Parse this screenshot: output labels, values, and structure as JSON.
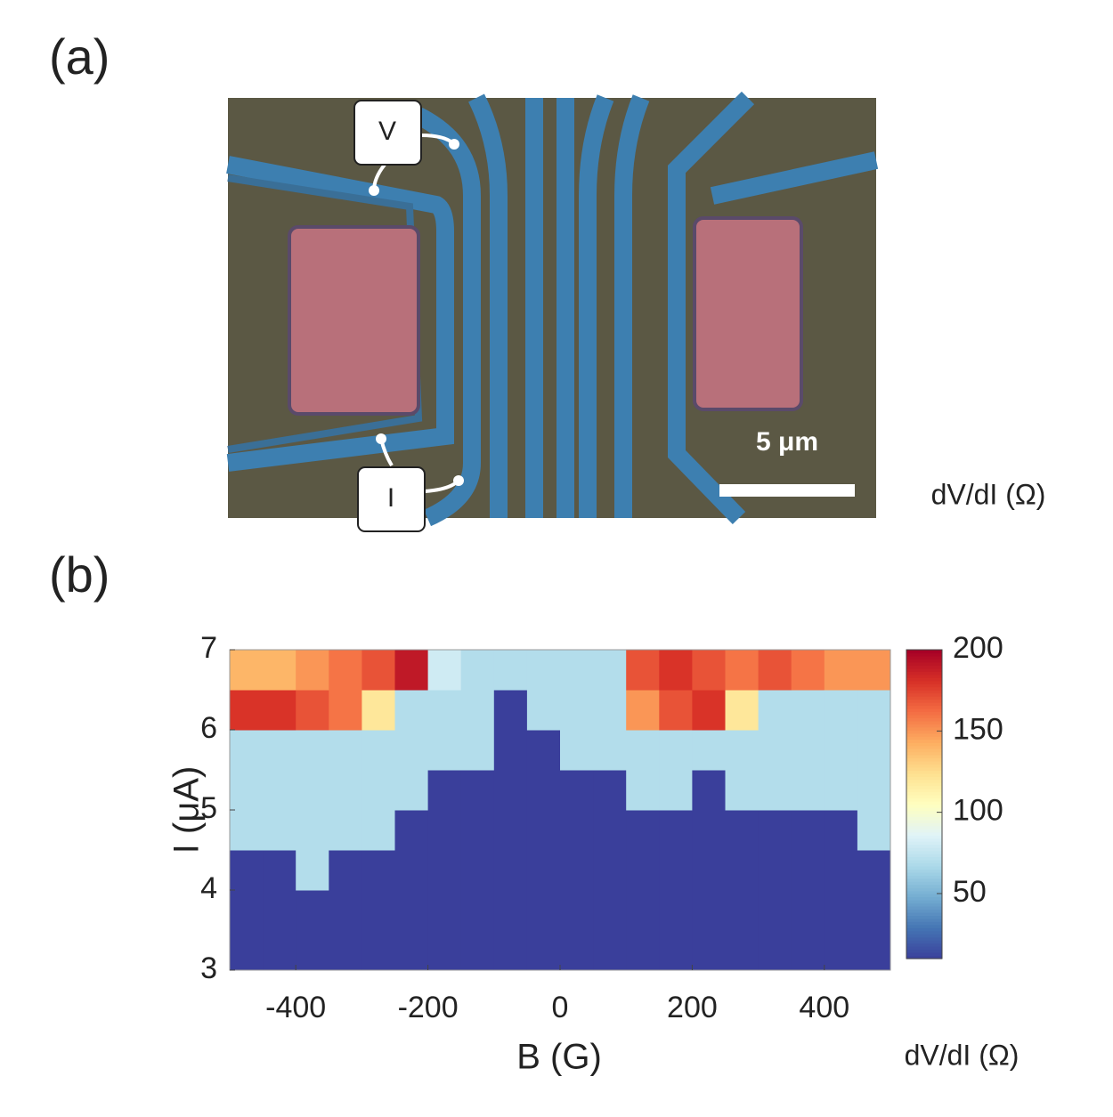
{
  "figure": {
    "panel_a": "(a)",
    "panel_b": "(b)",
    "probe_v": "V",
    "probe_i": "I",
    "scale_bar": "5 μm",
    "side_label": "dV/dI (Ω)"
  },
  "chart_data": {
    "type": "heatmap",
    "xlabel": "B (G)",
    "ylabel": "I (μA)",
    "colorbar_label": "dV/dI (Ω)",
    "x_bins": [
      -500,
      -450,
      -400,
      -350,
      -300,
      -250,
      -200,
      -150,
      -100,
      -50,
      0,
      50,
      100,
      150,
      200,
      250,
      300,
      350,
      400,
      450,
      500
    ],
    "y_bins": [
      3,
      3.5,
      4,
      4.5,
      5,
      5.5,
      6,
      6.5,
      7
    ],
    "z": [
      [
        10,
        10,
        10,
        10,
        10,
        10,
        10,
        10,
        10,
        10,
        10,
        10,
        10,
        10,
        10,
        10,
        10,
        10,
        10,
        10
      ],
      [
        10,
        10,
        10,
        10,
        10,
        10,
        10,
        10,
        10,
        10,
        10,
        10,
        10,
        10,
        10,
        10,
        10,
        10,
        10,
        10
      ],
      [
        10,
        10,
        70,
        10,
        10,
        10,
        10,
        10,
        10,
        10,
        10,
        10,
        10,
        10,
        10,
        10,
        10,
        10,
        10,
        10
      ],
      [
        70,
        70,
        70,
        70,
        70,
        10,
        10,
        10,
        10,
        10,
        10,
        10,
        10,
        10,
        10,
        10,
        10,
        10,
        10,
        70
      ],
      [
        70,
        70,
        70,
        70,
        70,
        70,
        10,
        10,
        10,
        10,
        10,
        10,
        70,
        70,
        10,
        70,
        70,
        70,
        70,
        70
      ],
      [
        70,
        70,
        70,
        70,
        70,
        70,
        70,
        70,
        10,
        10,
        70,
        70,
        70,
        70,
        70,
        70,
        70,
        70,
        70,
        70
      ],
      [
        180,
        180,
        170,
        160,
        120,
        70,
        70,
        70,
        10,
        70,
        70,
        70,
        150,
        170,
        180,
        120,
        70,
        70,
        70,
        70
      ],
      [
        140,
        140,
        150,
        160,
        170,
        190,
        80,
        70,
        70,
        70,
        70,
        70,
        170,
        180,
        170,
        160,
        170,
        160,
        150,
        150
      ]
    ],
    "xlim": [
      -500,
      500
    ],
    "xticks": [
      -400,
      -200,
      0,
      200,
      400
    ],
    "ylim": [
      3,
      7
    ],
    "yticks": [
      3,
      4,
      5,
      6,
      7
    ],
    "clim": [
      10,
      200
    ],
    "cticks": [
      50,
      100,
      150,
      200
    ],
    "colormap": [
      "#3a3f9b",
      "#4575b4",
      "#74add1",
      "#abd9e9",
      "#e0f3f8",
      "#ffffbf",
      "#fee090",
      "#fdae61",
      "#f46d43",
      "#d73027",
      "#a50026"
    ]
  }
}
